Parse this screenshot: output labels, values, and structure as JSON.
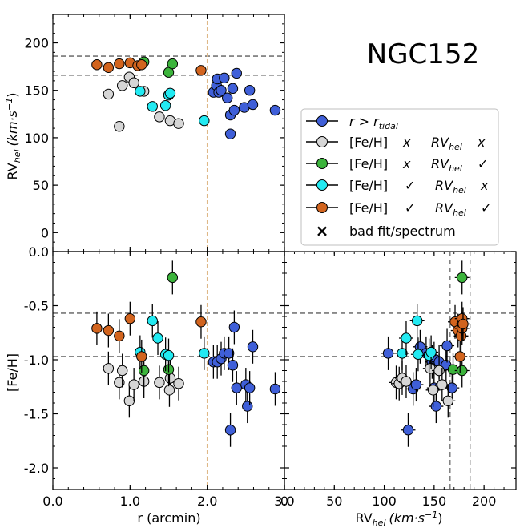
{
  "title": "NGC152",
  "colors": {
    "tidal": "#3f5fd8",
    "grey": "#d6d6d6",
    "green": "#3cb43c",
    "cyan": "#22eaf2",
    "orange": "#d2641e",
    "refline": "#777777",
    "tidal_line": "#deb887"
  },
  "legend": {
    "tidal_prefix": "r > r",
    "tidal_sub": "tidal",
    "feh": "[Fe/H]",
    "rv": "RV",
    "rv_sub": "hel",
    "mark_x": "x",
    "mark_check": "✓",
    "bad_fit_label": "bad fit/spectrum",
    "bad_fit_marker": "×"
  },
  "chart_data": [
    {
      "id": "rv_vs_r",
      "type": "scatter",
      "ylabel_main": "RV",
      "ylabel_sub": "hel",
      "ylabel_units": "(km·s",
      "ylabel_exp": "−1",
      "ylabel_close": ")",
      "xlim": [
        0.0,
        3.0
      ],
      "ylim": [
        -20,
        230
      ],
      "yticks": [
        "0",
        "50",
        "100",
        "150",
        "200"
      ],
      "yticks_values": [
        0,
        50,
        100,
        150,
        200
      ],
      "hlines": [
        166,
        186
      ],
      "vline": 2.0,
      "series": [
        {
          "name": "r > r_tidal",
          "color_key": "tidal",
          "points": [
            [
              2.08,
              148
            ],
            [
              2.12,
              155
            ],
            [
              2.13,
              162
            ],
            [
              2.15,
              148
            ],
            [
              2.18,
              150
            ],
            [
              2.22,
              163
            ],
            [
              2.26,
              142
            ],
            [
              2.3,
              104
            ],
            [
              2.3,
              124
            ],
            [
              2.33,
              152
            ],
            [
              2.35,
              129
            ],
            [
              2.38,
              168
            ],
            [
              2.48,
              132
            ],
            [
              2.55,
              150
            ],
            [
              2.59,
              135
            ],
            [
              2.88,
              129
            ]
          ]
        },
        {
          "name": "[Fe/H] x RVhel x",
          "color_key": "grey",
          "points": [
            [
              0.72,
              146
            ],
            [
              0.86,
              112
            ],
            [
              0.9,
              155
            ],
            [
              0.99,
              164
            ],
            [
              1.05,
              158
            ],
            [
              1.18,
              149
            ],
            [
              1.38,
              122
            ],
            [
              1.52,
              118
            ],
            [
              1.63,
              115
            ]
          ]
        },
        {
          "name": "[Fe/H] x RVhel ✓",
          "color_key": "green",
          "points": [
            [
              1.18,
              180
            ],
            [
              1.5,
              169
            ],
            [
              1.55,
              178
            ]
          ]
        },
        {
          "name": "[Fe/H] ✓ RVhel x",
          "color_key": "cyan",
          "points": [
            [
              1.13,
              149
            ],
            [
              1.29,
              133
            ],
            [
              1.46,
              134
            ],
            [
              1.5,
              145
            ],
            [
              1.52,
              147
            ],
            [
              1.96,
              118
            ]
          ]
        },
        {
          "name": "[Fe/H] ✓ RVhel ✓",
          "color_key": "orange",
          "points": [
            [
              0.57,
              177
            ],
            [
              0.72,
              174
            ],
            [
              0.86,
              178
            ],
            [
              1.0,
              179
            ],
            [
              1.1,
              176
            ],
            [
              1.15,
              177
            ],
            [
              1.92,
              171
            ]
          ]
        }
      ]
    },
    {
      "id": "feh_vs_r",
      "type": "scatter",
      "ylabel": "[Fe/H]",
      "xlabel": "r (arcmin)",
      "xlim": [
        0.0,
        3.0
      ],
      "ylim": [
        -2.2,
        0.0
      ],
      "xticks": [
        "0.0",
        "1.0",
        "2.0",
        "3.0"
      ],
      "xticks_values": [
        0.0,
        1.0,
        2.0,
        3.0
      ],
      "yticks": [
        "0.0",
        "-0.5",
        "-1.0",
        "-1.5",
        "-2.0"
      ],
      "yticks_values": [
        0.0,
        -0.5,
        -1.0,
        -1.5,
        -2.0
      ],
      "hlines": [
        -0.57,
        -0.97
      ],
      "vline": 2.0,
      "series": [
        {
          "name": "r > r_tidal",
          "color_key": "tidal",
          "points": [
            [
              2.08,
              -1.02
            ],
            [
              2.13,
              -1.02
            ],
            [
              2.18,
              -0.99
            ],
            [
              2.22,
              -0.94
            ],
            [
              2.28,
              -0.94
            ],
            [
              2.3,
              -1.65
            ],
            [
              2.33,
              -1.05
            ],
            [
              2.35,
              -0.7
            ],
            [
              2.38,
              -1.26
            ],
            [
              2.5,
              -1.23
            ],
            [
              2.52,
              -1.43
            ],
            [
              2.55,
              -1.26
            ],
            [
              2.59,
              -0.88
            ],
            [
              2.88,
              -1.27
            ]
          ]
        },
        {
          "name": "[Fe/H] x RVhel x",
          "color_key": "grey",
          "points": [
            [
              0.72,
              -1.08
            ],
            [
              0.86,
              -1.21
            ],
            [
              0.9,
              -1.1
            ],
            [
              0.99,
              -1.38
            ],
            [
              1.05,
              -1.23
            ],
            [
              1.18,
              -1.2
            ],
            [
              1.38,
              -1.21
            ],
            [
              1.52,
              -1.17
            ],
            [
              1.51,
              -1.28
            ],
            [
              1.63,
              -1.22
            ]
          ]
        },
        {
          "name": "[Fe/H] x RVhel ✓",
          "color_key": "green",
          "points": [
            [
              1.18,
              -1.1
            ],
            [
              1.5,
              -1.09
            ],
            [
              1.55,
              -0.24
            ]
          ]
        },
        {
          "name": "[Fe/H] ✓ RVhel x",
          "color_key": "cyan",
          "points": [
            [
              1.13,
              -0.93
            ],
            [
              1.29,
              -0.64
            ],
            [
              1.36,
              -0.8
            ],
            [
              1.46,
              -0.95
            ],
            [
              1.5,
              -0.96
            ],
            [
              1.96,
              -0.94
            ]
          ]
        },
        {
          "name": "[Fe/H] ✓ RVhel ✓",
          "color_key": "orange",
          "points": [
            [
              0.57,
              -0.71
            ],
            [
              0.72,
              -0.73
            ],
            [
              0.86,
              -0.78
            ],
            [
              1.0,
              -0.62
            ],
            [
              1.15,
              -0.97
            ],
            [
              1.92,
              -0.65
            ]
          ]
        }
      ]
    },
    {
      "id": "feh_vs_rv",
      "type": "scatter",
      "xlabel_main": "RV",
      "xlabel_sub": "hel",
      "xlabel_units": "(km·s",
      "xlabel_exp": "−1",
      "xlabel_close": ")",
      "xlim": [
        0,
        232
      ],
      "ylim": [
        -2.2,
        0.0
      ],
      "xticks": [
        "0",
        "50",
        "100",
        "150",
        "200"
      ],
      "xticks_values": [
        0,
        50,
        100,
        150,
        200
      ],
      "hlines": [
        -0.57,
        -0.97
      ],
      "vlines": [
        166,
        186
      ],
      "series": [
        {
          "name": "r > r_tidal",
          "color_key": "tidal",
          "points": [
            [
              104,
              -0.94
            ],
            [
              124,
              -1.65
            ],
            [
              129,
              -1.27
            ],
            [
              132,
              -1.23
            ],
            [
              136,
              -0.88
            ],
            [
              142,
              -0.94
            ],
            [
              148,
              -1.02
            ],
            [
              150,
              -1.26
            ],
            [
              150,
              -0.99
            ],
            [
              152,
              -1.43
            ],
            [
              155,
              -1.02
            ],
            [
              162,
              -1.05
            ],
            [
              163,
              -0.87
            ],
            [
              168,
              -1.26
            ]
          ]
        },
        {
          "name": "[Fe/H] x RVhel x",
          "color_key": "grey",
          "points": [
            [
              112,
              -1.21
            ],
            [
              115,
              -1.22
            ],
            [
              118,
              -1.17
            ],
            [
              122,
              -1.2
            ],
            [
              146,
              -1.08
            ],
            [
              149,
              -1.28
            ],
            [
              155,
              -1.1
            ],
            [
              158,
              -1.23
            ],
            [
              164,
              -1.38
            ]
          ]
        },
        {
          "name": "[Fe/H] x RVhel ✓",
          "color_key": "green",
          "points": [
            [
              169,
              -1.09
            ],
            [
              178,
              -1.1
            ],
            [
              178,
              -0.24
            ]
          ]
        },
        {
          "name": "[Fe/H] ✓ RVhel x",
          "color_key": "cyan",
          "points": [
            [
              118,
              -0.94
            ],
            [
              122,
              -0.8
            ],
            [
              133,
              -0.64
            ],
            [
              134,
              -0.95
            ],
            [
              145,
              -0.96
            ],
            [
              147,
              -0.93
            ]
          ]
        },
        {
          "name": "[Fe/H] ✓ RVhel ✓",
          "color_key": "orange",
          "points": [
            [
              171,
              -0.65
            ],
            [
              174,
              -0.73
            ],
            [
              176,
              -0.97
            ],
            [
              177,
              -0.78
            ],
            [
              178,
              -0.71
            ],
            [
              178,
              -0.62
            ],
            [
              179,
              -0.67
            ]
          ]
        }
      ]
    }
  ]
}
